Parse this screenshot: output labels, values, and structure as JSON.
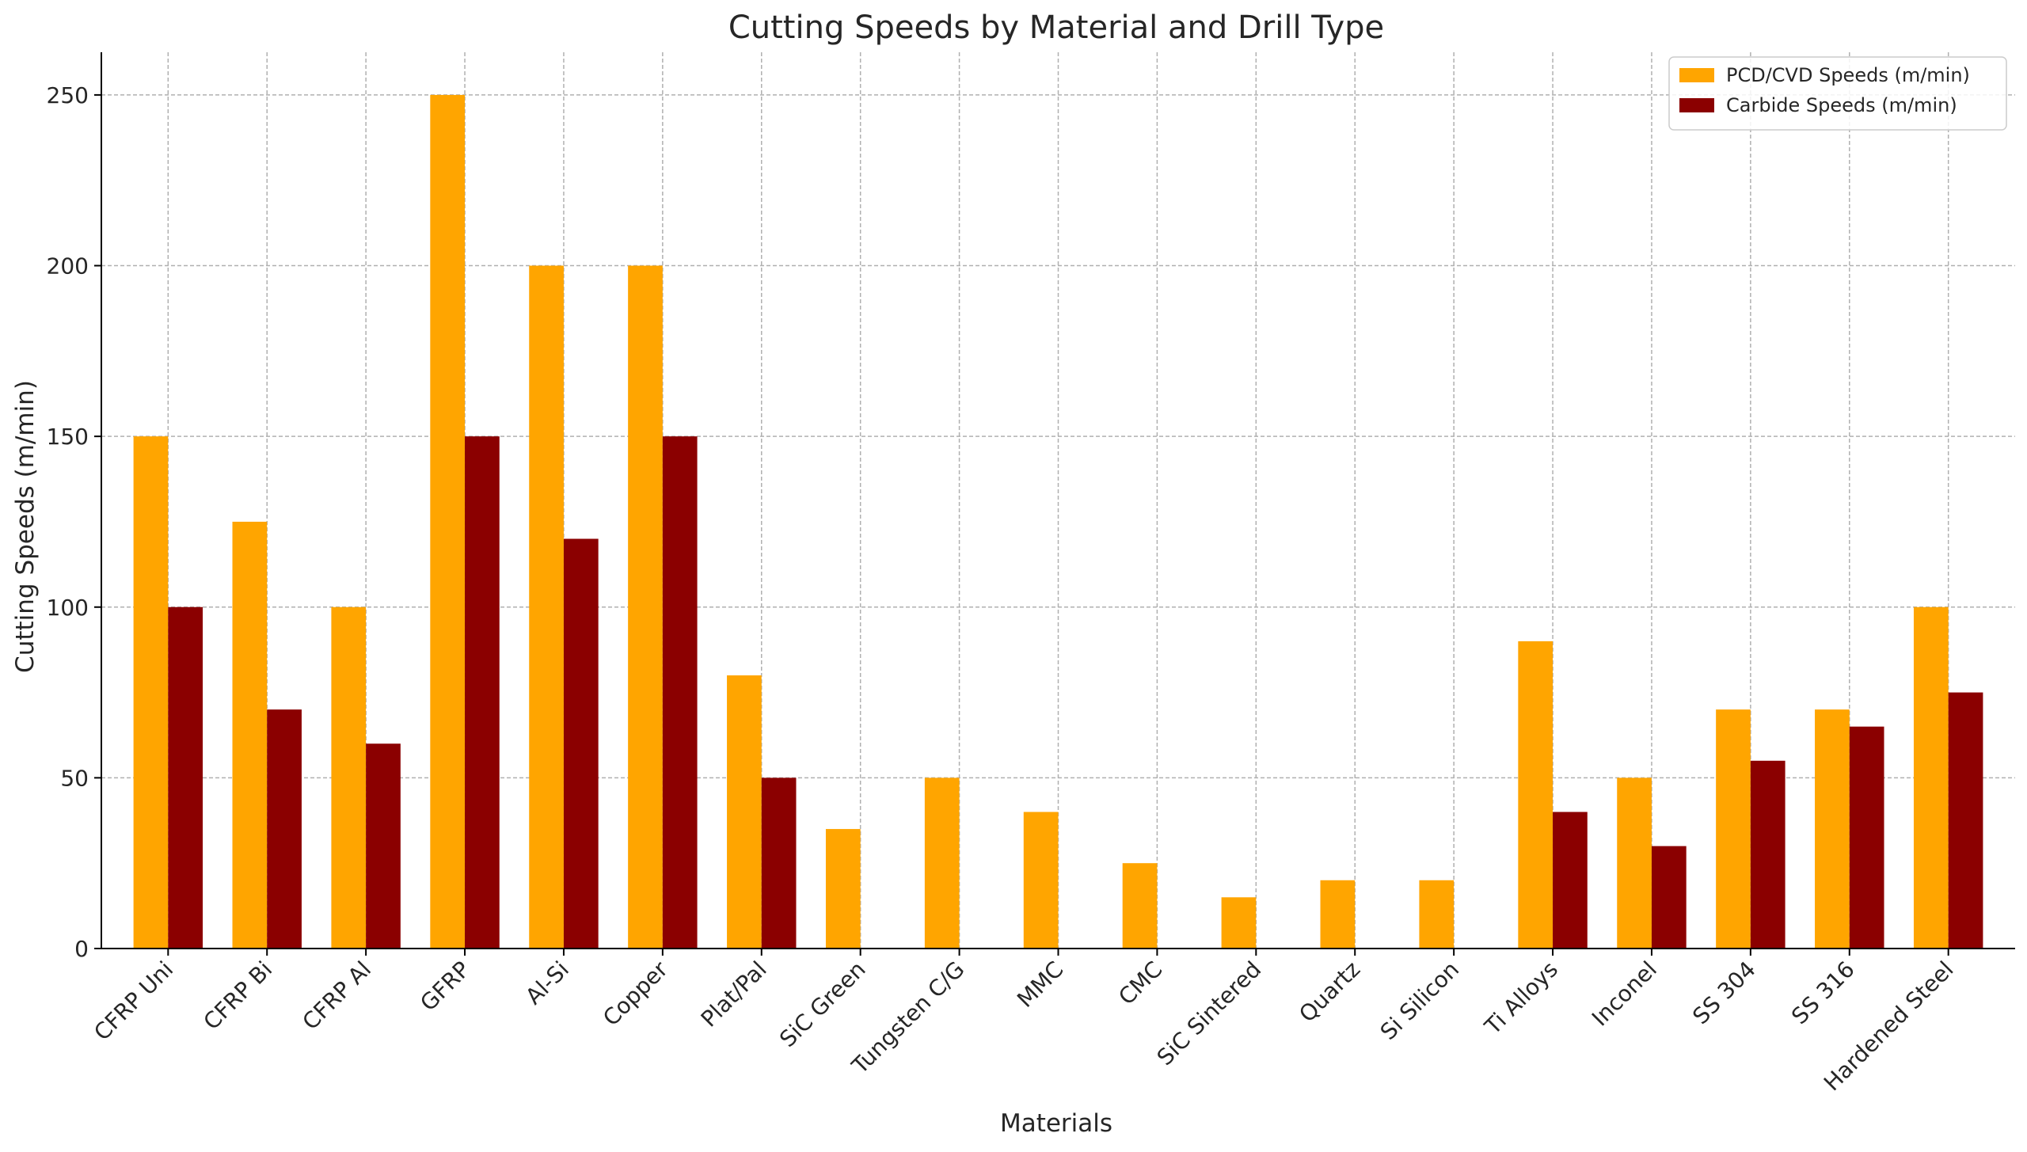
{
  "chart_data": {
    "type": "bar",
    "title": "Cutting Speeds by Material and Drill Type",
    "xlabel": "Materials",
    "ylabel": "Cutting Speeds (m/min)",
    "ylim": [
      0,
      262.5
    ],
    "yticks": [
      0,
      50,
      100,
      150,
      200,
      250
    ],
    "grid": true,
    "legend_position": "top-right",
    "categories": [
      "CFRP Uni",
      "CFRP Bi",
      "CFRP Al",
      "GFRP",
      "Al-Si",
      "Copper",
      "Plat/Pal",
      "SiC Green",
      "Tungsten C/G",
      "MMC",
      "CMC",
      "SiC Sintered",
      "Quartz",
      "Si Silicon",
      "Ti Alloys",
      "Inconel",
      "SS 304",
      "SS 316",
      "Hardened Steel"
    ],
    "series": [
      {
        "name": "PCD/CVD Speeds (m/min)",
        "color": "#FFA500",
        "values": [
          150,
          125,
          100,
          250,
          200,
          200,
          80,
          35,
          50,
          40,
          25,
          15,
          20,
          20,
          90,
          50,
          70,
          70,
          100
        ]
      },
      {
        "name": "Carbide Speeds (m/min)",
        "color": "#8B0000",
        "values": [
          100,
          70,
          60,
          150,
          120,
          150,
          50,
          0,
          0,
          0,
          0,
          0,
          0,
          0,
          40,
          30,
          55,
          65,
          75
        ]
      }
    ]
  }
}
